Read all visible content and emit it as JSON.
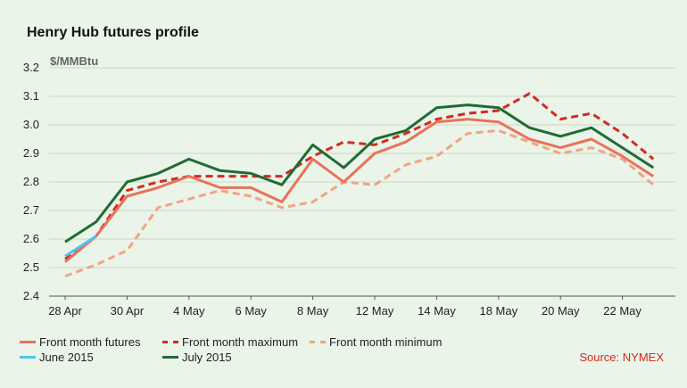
{
  "title": "Henry Hub futures profile",
  "source_text": "Source: NYMEX",
  "colors": {
    "background": "#eaf4e8",
    "front_month_futures": "#e8735a",
    "front_month_maximum": "#d42a20",
    "front_month_minimum": "#f1a483",
    "june_2015": "#4fc3ef",
    "july_2015": "#1f6b35",
    "source": "#d42a20"
  },
  "chart_data": {
    "type": "line",
    "ylabel": "$/MMBtu",
    "xlabel": "",
    "ylim": [
      2.4,
      3.2
    ],
    "yticks": [
      "2.4",
      "2.5",
      "2.6",
      "2.7",
      "2.8",
      "2.9",
      "3.0",
      "3.1",
      "3.2"
    ],
    "x": [
      "28 Apr",
      "29 Apr",
      "30 Apr",
      "1 May",
      "4 May",
      "5 May",
      "6 May",
      "7 May",
      "8 May",
      "11 May",
      "12 May",
      "13 May",
      "14 May",
      "15 May",
      "18 May",
      "19 May",
      "20 May",
      "21 May",
      "22 May",
      "26 May"
    ],
    "xtick_labels": [
      "28 Apr",
      "30 Apr",
      "4 May",
      "6 May",
      "8 May",
      "12 May",
      "14 May",
      "18 May",
      "20 May",
      "22 May"
    ],
    "grid": true,
    "legend_position": "bottom",
    "series": [
      {
        "name": "Front month futures",
        "style": "solid",
        "color": "#e8735a",
        "values": [
          2.52,
          2.61,
          2.75,
          2.78,
          2.82,
          2.78,
          2.78,
          2.73,
          2.88,
          2.8,
          2.9,
          2.94,
          3.01,
          3.02,
          3.01,
          2.95,
          2.92,
          2.95,
          2.89,
          2.82
        ]
      },
      {
        "name": "Front month maximum",
        "style": "dashed",
        "color": "#d42a20",
        "values": [
          2.53,
          2.61,
          2.77,
          2.8,
          2.82,
          2.82,
          2.82,
          2.82,
          2.89,
          2.94,
          2.93,
          2.97,
          3.02,
          3.04,
          3.05,
          3.11,
          3.02,
          3.04,
          2.97,
          2.88
        ]
      },
      {
        "name": "Front month minimum",
        "style": "dashed",
        "color": "#f1a483",
        "values": [
          2.47,
          2.51,
          2.56,
          2.71,
          2.74,
          2.77,
          2.75,
          2.71,
          2.73,
          2.8,
          2.79,
          2.86,
          2.89,
          2.97,
          2.98,
          2.94,
          2.9,
          2.92,
          2.88,
          2.79
        ]
      },
      {
        "name": "June 2015",
        "style": "solid",
        "color": "#4fc3ef",
        "values": [
          2.54,
          2.61,
          null,
          null,
          null,
          null,
          null,
          null,
          null,
          null,
          null,
          null,
          null,
          null,
          null,
          null,
          null,
          null,
          null,
          null
        ]
      },
      {
        "name": "July 2015",
        "style": "solid",
        "color": "#1f6b35",
        "values": [
          2.59,
          2.66,
          2.8,
          2.83,
          2.88,
          2.84,
          2.83,
          2.79,
          2.93,
          2.85,
          2.95,
          2.98,
          3.06,
          3.07,
          3.06,
          2.99,
          2.96,
          2.99,
          2.92,
          2.85
        ]
      }
    ]
  }
}
